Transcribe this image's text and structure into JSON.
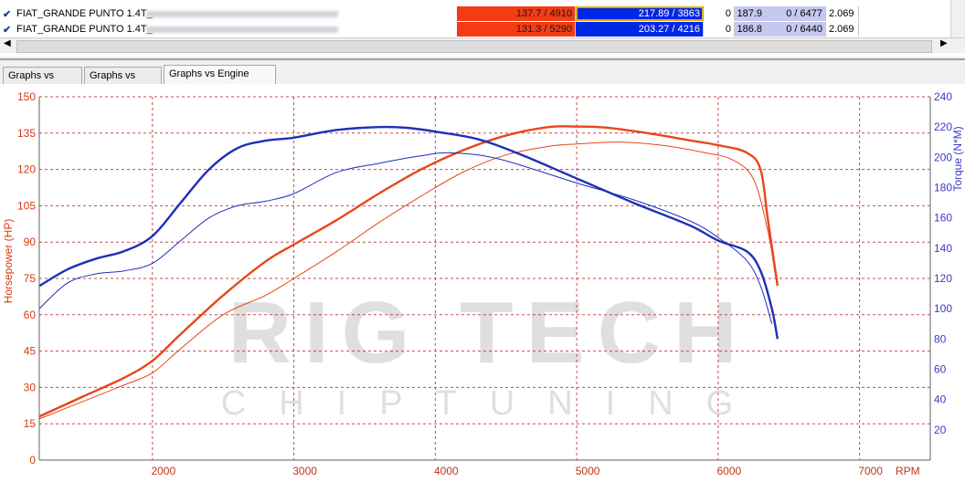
{
  "rows": [
    {
      "name": "FIAT_GRANDE PUNTO 1.4T_",
      "hp": "137.7 / 4910",
      "torque": "217.89 / 3863",
      "zero": "0",
      "v1": "187.9",
      "v2": "0 / 6477",
      "v3": "2.069"
    },
    {
      "name": "FIAT_GRANDE PUNTO 1.4T_",
      "hp": "131.3 / 5290",
      "torque": "203.27 / 4216",
      "zero": "0",
      "v1": "186.8",
      "v2": "0 / 6440",
      "v3": "2.069"
    }
  ],
  "tabs": [
    "Graphs vs Time",
    "Graphs vs KMH",
    "Graphs vs Engine RPM"
  ],
  "colors": {
    "hp": "#e8461a",
    "torque": "#1f2fb8",
    "grid": "#b22222"
  },
  "watermark": {
    "line1": "RIG TECH",
    "line2": "CHIPTUNING"
  },
  "chart_data": {
    "type": "line",
    "xlabel": "RPM",
    "ylabel": "Horsepower (HP)",
    "y2label": "Torque (N*M)",
    "xlim": [
      1200,
      7500
    ],
    "ylim": [
      0,
      150
    ],
    "y2lim": [
      0,
      240
    ],
    "xticks": [
      2000,
      3000,
      4000,
      5000,
      6000,
      7000
    ],
    "yticks": [
      0,
      15,
      30,
      45,
      60,
      75,
      90,
      105,
      120,
      135,
      150
    ],
    "y2ticks": [
      20,
      40,
      60,
      80,
      100,
      120,
      140,
      160,
      180,
      200,
      220,
      240
    ],
    "series": [
      {
        "axis": "hp",
        "style": "thick",
        "x": [
          1200,
          1500,
          1800,
          2000,
          2200,
          2500,
          2800,
          3000,
          3300,
          3600,
          3900,
          4200,
          4500,
          4800,
          5000,
          5200,
          5500,
          5800,
          6000,
          6200,
          6300,
          6350,
          6420
        ],
        "y": [
          18,
          26,
          34,
          41,
          52,
          68,
          82,
          89,
          99,
          110,
          120,
          128,
          134,
          137.5,
          137.7,
          137.3,
          135,
          132,
          130,
          127,
          120,
          100,
          72
        ]
      },
      {
        "axis": "hp",
        "style": "thin",
        "x": [
          1200,
          1500,
          1800,
          2000,
          2200,
          2500,
          2800,
          3000,
          3300,
          3600,
          3900,
          4200,
          4500,
          4800,
          5000,
          5300,
          5600,
          5900,
          6100,
          6250,
          6350,
          6400
        ],
        "y": [
          17,
          24,
          31,
          36,
          46,
          60,
          68,
          75,
          86,
          98,
          109,
          119,
          126,
          129.5,
          130.5,
          131.3,
          130,
          127,
          124,
          116,
          95,
          78
        ]
      },
      {
        "axis": "torque",
        "style": "thick",
        "x": [
          1200,
          1400,
          1600,
          1800,
          2000,
          2200,
          2400,
          2600,
          2800,
          3000,
          3300,
          3600,
          3800,
          4000,
          4300,
          4600,
          5000,
          5400,
          5800,
          6000,
          6200,
          6300,
          6380,
          6420
        ],
        "y": [
          115,
          126,
          133,
          138,
          148,
          170,
          192,
          206,
          211,
          213,
          218,
          220,
          219.5,
          217,
          212,
          202,
          186,
          170,
          155,
          145,
          138,
          125,
          100,
          80
        ]
      },
      {
        "axis": "torque",
        "style": "thin",
        "x": [
          1200,
          1400,
          1600,
          1800,
          2000,
          2200,
          2400,
          2600,
          2800,
          3000,
          3300,
          3600,
          3900,
          4100,
          4400,
          4700,
          5000,
          5400,
          5800,
          6000,
          6200,
          6300,
          6380
        ],
        "y": [
          100,
          117,
          123,
          125,
          130,
          145,
          160,
          168,
          171,
          176,
          190,
          196,
          201,
          203,
          200,
          192,
          183,
          172,
          158,
          147,
          132,
          115,
          90
        ]
      }
    ]
  }
}
